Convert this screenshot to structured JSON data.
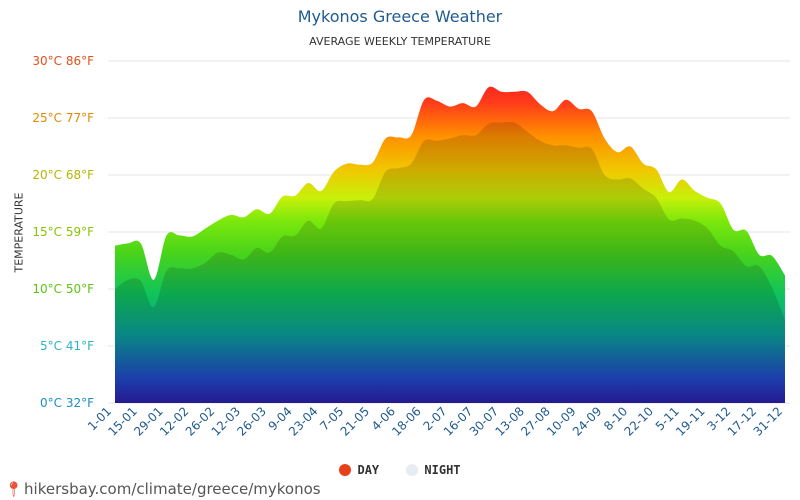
{
  "chart_data": {
    "type": "area",
    "title": "Mykonos Greece Weather",
    "subtitle": "AVERAGE WEEKLY TEMPERATURE",
    "ylabel": "TEMPERATURE",
    "ylim": [
      0,
      30
    ],
    "yticks": [
      {
        "value": 0,
        "label": "0°C 32°F",
        "color": "#1a8fc4"
      },
      {
        "value": 5,
        "label": "5°C 41°F",
        "color": "#2ab5c8"
      },
      {
        "value": 10,
        "label": "10°C 50°F",
        "color": "#5cc414"
      },
      {
        "value": 15,
        "label": "15°C 59°F",
        "color": "#8ac400"
      },
      {
        "value": 20,
        "label": "20°C 68°F",
        "color": "#b8b400"
      },
      {
        "value": 25,
        "label": "25°C 77°F",
        "color": "#e08a00"
      },
      {
        "value": 30,
        "label": "30°C 86°F",
        "color": "#e0501a"
      }
    ],
    "x_tick_labels": [
      "1-01",
      "15-01",
      "29-01",
      "12-02",
      "26-02",
      "12-03",
      "26-03",
      "9-04",
      "23-04",
      "7-05",
      "21-05",
      "4-06",
      "18-06",
      "2-07",
      "16-07",
      "30-07",
      "13-08",
      "27-08",
      "10-09",
      "24-09",
      "8-10",
      "22-10",
      "5-11",
      "19-11",
      "3-12",
      "17-12",
      "31-12"
    ],
    "series": [
      {
        "name": "DAY",
        "color": "#e8401a",
        "values": [
          13.8,
          14.0,
          14.0,
          10.8,
          14.7,
          14.7,
          14.6,
          15.3,
          16.0,
          16.5,
          16.3,
          17.0,
          16.6,
          18.1,
          18.2,
          19.3,
          18.6,
          20.3,
          21.0,
          20.9,
          21.1,
          23.2,
          23.3,
          23.5,
          26.6,
          26.5,
          26.0,
          26.3,
          26.0,
          27.7,
          27.3,
          27.3,
          27.3,
          26.2,
          25.6,
          26.6,
          25.8,
          25.6,
          23.2,
          22.0,
          22.5,
          21.0,
          20.5,
          18.5,
          19.6,
          18.6,
          18.0,
          17.5,
          15.2,
          15.1,
          13.0,
          12.9,
          11.2
        ]
      },
      {
        "name": "NIGHT",
        "color": "#e6ecf2",
        "values": [
          10.0,
          10.8,
          10.7,
          8.4,
          11.6,
          11.8,
          11.8,
          12.3,
          13.2,
          13.0,
          12.6,
          13.6,
          13.2,
          14.6,
          14.7,
          16.0,
          15.3,
          17.5,
          17.7,
          17.8,
          17.9,
          20.3,
          20.6,
          21.0,
          23.0,
          23.0,
          23.2,
          23.5,
          23.5,
          24.5,
          24.6,
          24.6,
          23.8,
          23.0,
          22.6,
          22.6,
          22.4,
          22.3,
          20.0,
          19.6,
          19.7,
          18.8,
          18.0,
          16.1,
          16.2,
          16.0,
          15.3,
          13.8,
          13.3,
          12.0,
          12.0,
          10.1,
          7.3
        ]
      }
    ],
    "grid": true
  },
  "legend": {
    "day_label": "DAY",
    "night_label": "NIGHT",
    "day_color": "#e8401a",
    "night_color": "#e6ecf2"
  },
  "source": {
    "text": "hikersbay.com/climate/greece/mykonos"
  }
}
